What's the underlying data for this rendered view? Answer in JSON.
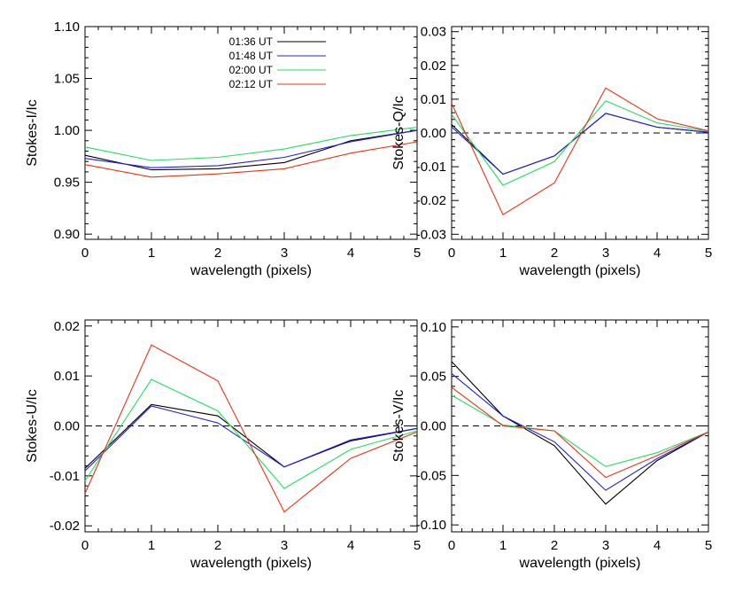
{
  "legend": [
    {
      "name": "01:36 UT",
      "color": "#000000"
    },
    {
      "name": "01:48 UT",
      "color": "#2020e0"
    },
    {
      "name": "02:00 UT",
      "color": "#20e060"
    },
    {
      "name": "02:12 UT",
      "color": "#f03010"
    }
  ],
  "chart_data": [
    {
      "type": "line",
      "xlabel": "wavelength (pixels)",
      "ylabel": "Stokes-I/Ic",
      "x": [
        0,
        1,
        2,
        3,
        4,
        5
      ],
      "xlim": [
        0,
        5
      ],
      "ylim": [
        0.895,
        1.1
      ],
      "xticks": [
        "0",
        "1",
        "2",
        "3",
        "4",
        "5"
      ],
      "yticks": [
        0.9,
        0.95,
        1.0,
        1.05,
        1.1
      ],
      "ytick_labels": [
        "0.90",
        "0.95",
        "1.00",
        "1.05",
        "1.10"
      ],
      "zero_line": false,
      "legend_position": "top-right",
      "series": [
        {
          "name": "01:36 UT",
          "color": "#000000",
          "values": [
            0.976,
            0.962,
            0.963,
            0.969,
            0.99,
            1.0
          ]
        },
        {
          "name": "01:48 UT",
          "color": "#2020e0",
          "values": [
            0.973,
            0.964,
            0.966,
            0.974,
            0.989,
            1.0
          ]
        },
        {
          "name": "02:00 UT",
          "color": "#20e060",
          "values": [
            0.984,
            0.971,
            0.974,
            0.982,
            0.995,
            1.003
          ]
        },
        {
          "name": "02:12 UT",
          "color": "#f03010",
          "values": [
            0.967,
            0.955,
            0.958,
            0.963,
            0.978,
            0.989
          ]
        }
      ]
    },
    {
      "type": "line",
      "xlabel": "wavelength (pixels)",
      "ylabel": "Stokes-Q/Ic",
      "x": [
        0,
        1,
        2,
        3,
        4,
        5
      ],
      "xlim": [
        0,
        5
      ],
      "ylim": [
        -0.0315,
        0.0315
      ],
      "xticks": [
        "0",
        "1",
        "2",
        "3",
        "4",
        "5"
      ],
      "yticks": [
        -0.03,
        -0.02,
        -0.01,
        0.0,
        0.01,
        0.02,
        0.03
      ],
      "ytick_labels": [
        "-0.03",
        "-0.02",
        "-0.01",
        "0.00",
        "0.01",
        "0.02",
        "0.03"
      ],
      "zero_line": true,
      "series": [
        {
          "name": "01:36 UT",
          "color": "#000000",
          "values": [
            0.0025,
            -0.0122,
            -0.0068,
            0.0058,
            0.0017,
            0.0002
          ]
        },
        {
          "name": "01:48 UT",
          "color": "#2020e0",
          "values": [
            0.0018,
            -0.0122,
            -0.0068,
            0.0058,
            0.0017,
            0.0002
          ]
        },
        {
          "name": "02:00 UT",
          "color": "#20e060",
          "values": [
            0.0055,
            -0.0155,
            -0.0085,
            0.0095,
            0.003,
            0.0005
          ]
        },
        {
          "name": "02:12 UT",
          "color": "#f03010",
          "values": [
            0.0088,
            -0.0242,
            -0.0148,
            0.0133,
            0.0042,
            0.0006
          ]
        }
      ]
    },
    {
      "type": "line",
      "xlabel": "wavelength (pixels)",
      "ylabel": "Stokes-U/Ic",
      "x": [
        0,
        1,
        2,
        3,
        4,
        5
      ],
      "xlim": [
        0,
        5
      ],
      "ylim": [
        -0.0212,
        0.0212
      ],
      "xticks": [
        "0",
        "1",
        "2",
        "3",
        "4",
        "5"
      ],
      "yticks": [
        -0.02,
        -0.01,
        0.0,
        0.01,
        0.02
      ],
      "ytick_labels": [
        "-0.02",
        "-0.01",
        "0.00",
        "0.01",
        "0.02"
      ],
      "zero_line": true,
      "series": [
        {
          "name": "01:36 UT",
          "color": "#000000",
          "values": [
            -0.0085,
            0.0043,
            0.002,
            -0.0082,
            -0.003,
            -0.0005
          ]
        },
        {
          "name": "01:48 UT",
          "color": "#2020e0",
          "values": [
            -0.009,
            0.004,
            0.0006,
            -0.0082,
            -0.0028,
            -0.0005
          ]
        },
        {
          "name": "02:00 UT",
          "color": "#20e060",
          "values": [
            -0.011,
            0.0093,
            0.003,
            -0.0125,
            -0.0047,
            -0.001
          ]
        },
        {
          "name": "02:12 UT",
          "color": "#f03010",
          "values": [
            -0.0135,
            0.0162,
            0.009,
            -0.0172,
            -0.0065,
            -0.0012
          ]
        }
      ]
    },
    {
      "type": "line",
      "xlabel": "wavelength (pixels)",
      "ylabel": "Stokes-V/Ic",
      "x": [
        0,
        1,
        2,
        3,
        4,
        5
      ],
      "xlim": [
        0,
        5
      ],
      "ylim": [
        -0.107,
        0.107
      ],
      "xticks": [
        "0",
        "1",
        "2",
        "3",
        "4",
        "5"
      ],
      "yticks": [
        -0.1,
        -0.05,
        0.0,
        0.05,
        0.1
      ],
      "ytick_labels": [
        "-0.10",
        "-0.05",
        "0.00",
        "0.05",
        "0.10"
      ],
      "zero_line": true,
      "series": [
        {
          "name": "01:36 UT",
          "color": "#000000",
          "values": [
            0.065,
            0.01,
            -0.02,
            -0.079,
            -0.035,
            -0.006
          ]
        },
        {
          "name": "01:48 UT",
          "color": "#2020e0",
          "values": [
            0.053,
            0.01,
            -0.016,
            -0.065,
            -0.033,
            -0.006
          ]
        },
        {
          "name": "02:00 UT",
          "color": "#20e060",
          "values": [
            0.031,
            0.001,
            -0.005,
            -0.041,
            -0.027,
            -0.006
          ]
        },
        {
          "name": "02:12 UT",
          "color": "#f03010",
          "values": [
            0.039,
            0.0,
            -0.005,
            -0.052,
            -0.03,
            -0.006
          ]
        }
      ]
    }
  ]
}
